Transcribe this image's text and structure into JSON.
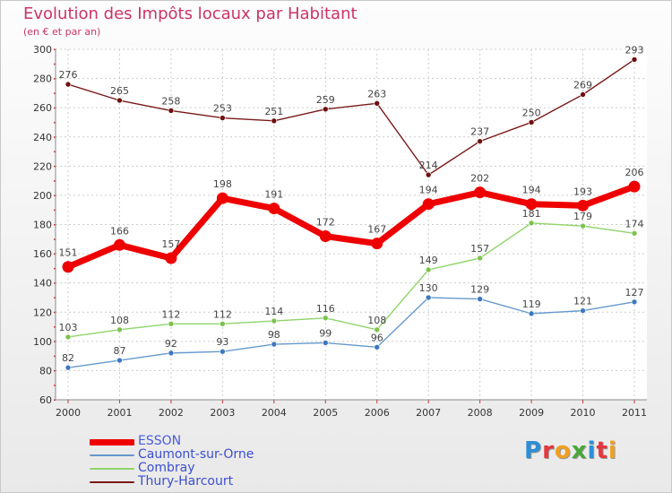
{
  "header": {
    "title": "Evolution des Impôts locaux par Habitant",
    "subtitle": "(en € et par an)"
  },
  "logo": {
    "text": "Proxiti",
    "letter_colors": [
      "#2a8fd6",
      "#e3383e",
      "#f0a020",
      "#4aa63a",
      "#2a8fd6",
      "#e3383e",
      "#f0a020"
    ]
  },
  "chart_data": {
    "type": "line",
    "title": "Evolution des Impôts locaux par Habitant",
    "subtitle": "(en € et par an)",
    "xlabel": "",
    "ylabel": "",
    "x": [
      "2000",
      "2001",
      "2002",
      "2003",
      "2004",
      "2005",
      "2006",
      "2007",
      "2008",
      "2009",
      "2010",
      "2011"
    ],
    "ylim": [
      60,
      300
    ],
    "yticks": [
      "60",
      "80",
      "100",
      "120",
      "140",
      "160",
      "180",
      "200",
      "220",
      "240",
      "260",
      "280",
      "300"
    ],
    "grid": true,
    "legend_position": "bottom-left",
    "series": [
      {
        "name": "Thury-Harcourt",
        "color": "#7a1a1a",
        "marker_color": "#6e1010",
        "values": [
          276,
          265,
          258,
          253,
          251,
          259,
          263,
          214,
          237,
          250,
          269,
          293
        ],
        "labels": [
          "276",
          "265",
          "258",
          "253",
          "251",
          "259",
          "263",
          "214",
          "237",
          "250",
          "269",
          "293"
        ]
      },
      {
        "name": "Combray",
        "color": "#8fd46a",
        "marker_color": "#7cc24f",
        "values": [
          103,
          108,
          112,
          112,
          114,
          116,
          108,
          149,
          157,
          181,
          179,
          174
        ],
        "labels": [
          "103",
          "108",
          "112",
          "112",
          "114",
          "116",
          "108",
          "149",
          "157",
          "181",
          "179",
          "174"
        ]
      },
      {
        "name": "Caumont-sur-Orne",
        "color": "#6699cc",
        "marker_color": "#3d78bf",
        "values": [
          82,
          87,
          92,
          93,
          98,
          99,
          96,
          130,
          129,
          119,
          121,
          127
        ],
        "labels": [
          "82",
          "87",
          "92",
          "93",
          "98",
          "99",
          "96",
          "130",
          "129",
          "119",
          "121",
          "127"
        ]
      },
      {
        "name": "ESSON",
        "color": "#ee0000",
        "marker_color": "#ee0000",
        "values": [
          151,
          166,
          157,
          198,
          191,
          172,
          167,
          194,
          202,
          194,
          193,
          206
        ],
        "labels": [
          "151",
          "166",
          "157",
          "198",
          "191",
          "172",
          "167",
          "194",
          "202",
          "194",
          "193",
          "206"
        ]
      }
    ],
    "legend": [
      {
        "name": "ESSON",
        "color": "#ee0000"
      },
      {
        "name": "Caumont-sur-Orne",
        "color": "#6699cc"
      },
      {
        "name": "Combray",
        "color": "#8fd46a"
      },
      {
        "name": "Thury-Harcourt",
        "color": "#7a1a1a"
      }
    ]
  }
}
